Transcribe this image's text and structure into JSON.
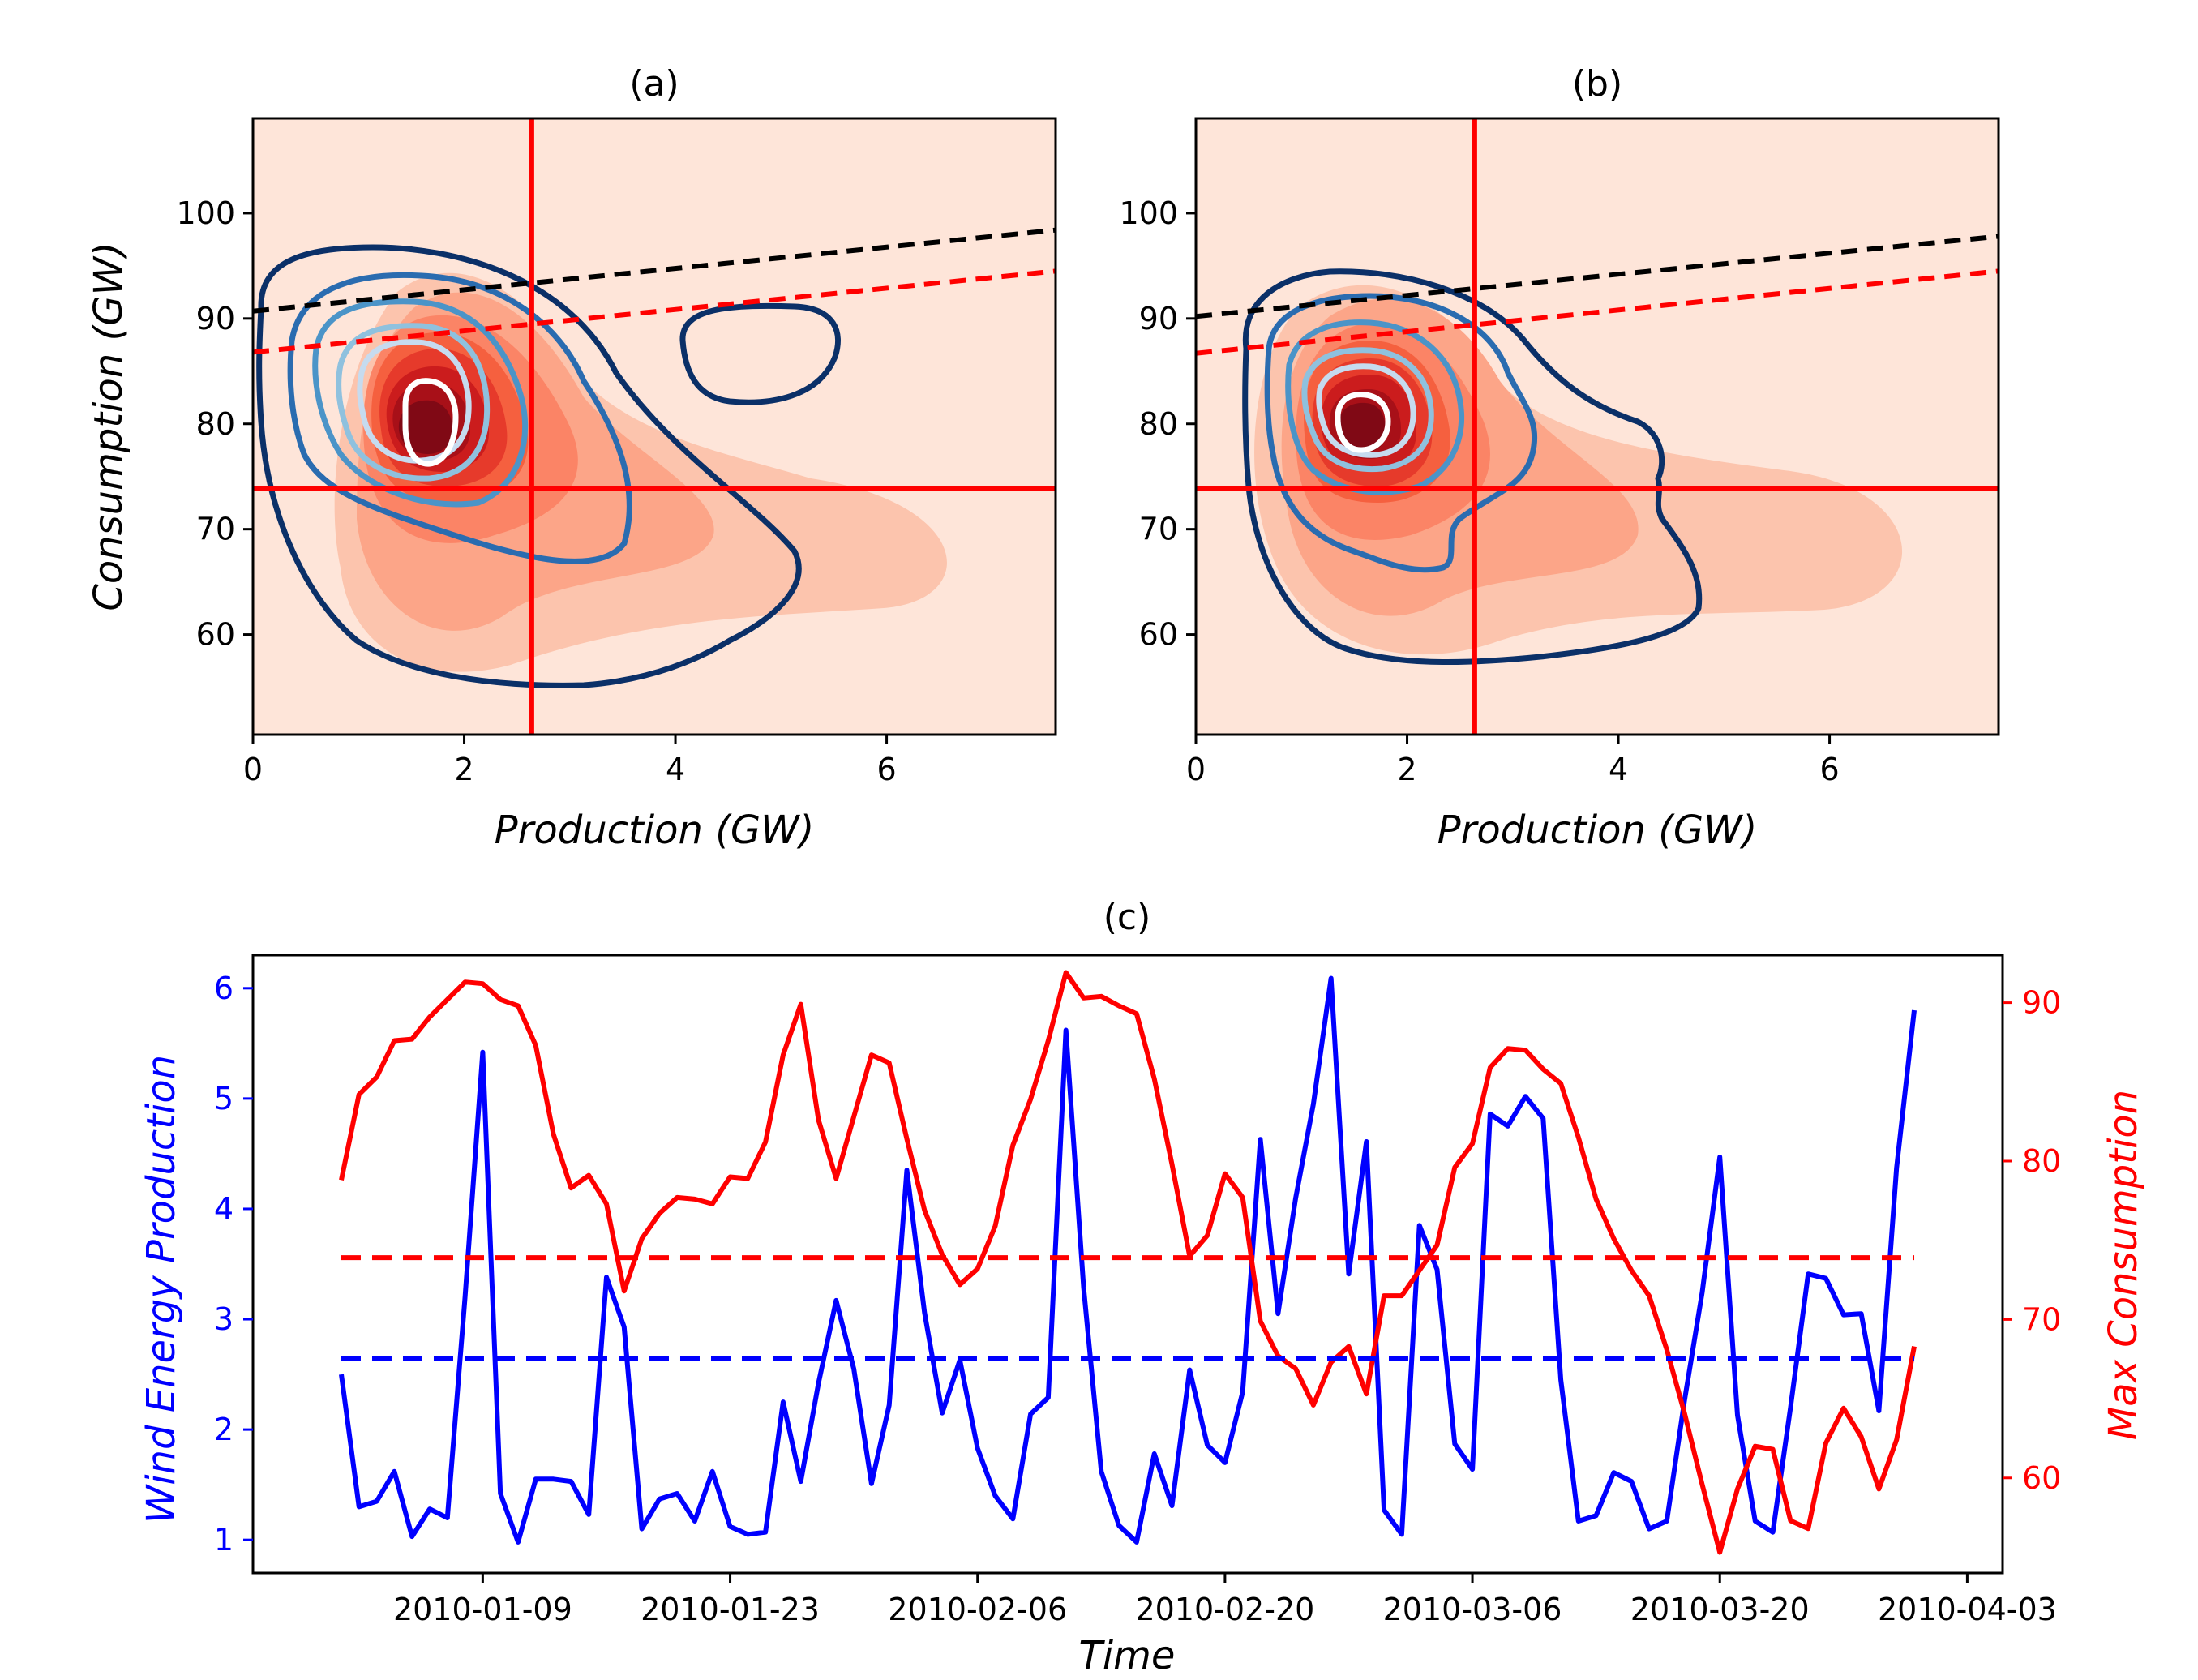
{
  "chart_data": [
    {
      "type": "contour",
      "title": "(a)",
      "xlabel": "Production (GW)",
      "ylabel": "Consumption (GW)",
      "xlim": [
        0,
        7.6
      ],
      "ylim": [
        50.5,
        109
      ],
      "xticks": [
        "0",
        "2",
        "4",
        "6"
      ],
      "yticks": [
        "60",
        "70",
        "80",
        "90",
        "100"
      ],
      "hline": 73.9,
      "vline": 2.64,
      "line_black_dashed": [
        [
          0,
          90.7
        ],
        [
          7.6,
          98.4
        ]
      ],
      "line_red_dashed": [
        [
          0,
          86.8
        ],
        [
          7.6,
          94.5
        ]
      ],
      "filled_density_center": [
        1.5,
        78.5
      ],
      "filled_colors": [
        "#fee5d9",
        "#fcc4ad",
        "#fca588",
        "#fb8466",
        "#f5603f",
        "#e63a2b",
        "#cb1c1d",
        "#a81018",
        "#800915"
      ],
      "line_colors": [
        "#0b3068",
        "#2a6cb0",
        "#4b94c8",
        "#8fc1de",
        "#c6dbef",
        "#ffffff"
      ],
      "show_grid": false
    },
    {
      "type": "contour",
      "title": "(b)",
      "xlabel": "Production (GW)",
      "ylabel": "",
      "xlim": [
        0,
        7.6
      ],
      "ylim": [
        50.5,
        109
      ],
      "xticks": [
        "0",
        "2",
        "4",
        "6"
      ],
      "yticks": [
        "60",
        "70",
        "80",
        "90",
        "100"
      ],
      "hline": 73.9,
      "vline": 2.64,
      "line_black_dashed": [
        [
          0,
          90.2
        ],
        [
          7.6,
          97.8
        ]
      ],
      "line_red_dashed": [
        [
          0,
          86.7
        ],
        [
          7.6,
          94.5
        ]
      ],
      "filled_density_center": [
        1.45,
        78.5
      ],
      "show_grid": false
    },
    {
      "type": "line",
      "title": "(c)",
      "xlabel": "Time",
      "ylabel_left": "Wind Energy Production",
      "ylabel_right": "Max Consumption",
      "xlim": [
        "2009-12-27",
        "2010-04-05"
      ],
      "ylim_left": [
        0.7,
        6.3
      ],
      "ylim_right": [
        54,
        93
      ],
      "xticks": [
        "2010-01-09",
        "2010-01-23",
        "2010-02-06",
        "2010-02-20",
        "2010-03-06",
        "2010-03-20",
        "2010-04-03"
      ],
      "yticks_left": [
        "1",
        "2",
        "3",
        "4",
        "5",
        "6"
      ],
      "yticks_right": [
        "60",
        "70",
        "80",
        "90"
      ],
      "start_date": "2010-01-01",
      "colors": {
        "left": "#0000ff",
        "right": "#ff0000"
      },
      "series": [
        {
          "name": "Wind Energy Production",
          "axis": "left",
          "color": "#0000ff",
          "values": [
            2.5,
            1.3,
            1.35,
            1.62,
            1.03,
            1.28,
            1.2,
            3.2,
            5.42,
            1.42,
            0.98,
            1.55,
            1.55,
            1.53,
            1.23,
            3.38,
            2.93,
            1.1,
            1.37,
            1.42,
            1.17,
            1.62,
            1.12,
            1.05,
            1.07,
            2.25,
            1.53,
            2.42,
            3.17,
            2.55,
            1.51,
            2.22,
            4.35,
            3.06,
            2.15,
            2.63,
            1.83,
            1.4,
            1.19,
            2.14,
            2.29,
            5.62,
            3.29,
            1.62,
            1.13,
            0.98,
            1.78,
            1.31,
            2.54,
            1.86,
            1.7,
            2.34,
            4.63,
            3.05,
            4.1,
            4.95,
            6.09,
            3.41,
            4.61,
            1.27,
            1.05,
            3.85,
            3.45,
            1.87,
            1.64,
            4.86,
            4.75,
            5.02,
            4.82,
            2.45,
            1.17,
            1.22,
            1.61,
            1.53,
            1.1,
            1.17,
            2.26,
            3.24,
            4.47,
            2.13,
            1.17,
            1.07,
            2.2,
            3.41,
            3.37,
            3.04,
            3.05,
            2.17,
            4.37,
            5.8
          ]
        },
        {
          "name": "Max Consumption",
          "axis": "right",
          "color": "#ff0000",
          "values": [
            78.8,
            84.2,
            85.3,
            87.6,
            87.7,
            89.1,
            90.2,
            91.3,
            91.2,
            90.2,
            89.8,
            87.3,
            81.7,
            78.3,
            79.1,
            77.3,
            71.8,
            75.1,
            76.7,
            77.7,
            77.6,
            77.3,
            79.0,
            78.9,
            81.2,
            86.7,
            89.9,
            82.6,
            78.9,
            82.8,
            86.7,
            86.2,
            81.4,
            76.9,
            74.1,
            72.2,
            73.2,
            75.9,
            81.0,
            83.9,
            87.6,
            91.9,
            90.3,
            90.4,
            89.8,
            89.3,
            85.2,
            79.8,
            74.0,
            75.3,
            79.2,
            77.7,
            69.9,
            67.7,
            66.9,
            64.6,
            67.3,
            68.3,
            65.3,
            71.5,
            71.5,
            73.1,
            74.7,
            79.6,
            81.1,
            85.9,
            87.1,
            87.0,
            85.8,
            84.9,
            81.5,
            77.6,
            75.1,
            73.1,
            71.5,
            68.1,
            64.1,
            59.6,
            55.3,
            59.3,
            62.0,
            61.8,
            57.3,
            56.8,
            62.2,
            64.4,
            62.6,
            59.3,
            62.4,
            68.3
          ]
        },
        {
          "name": "",
          "axis": "left",
          "color": "#0000ff",
          "dashed": true,
          "values": [
            2.64
          ]
        },
        {
          "name": "",
          "axis": "right",
          "color": "#ff0000",
          "dashed": true,
          "values": [
            73.9
          ]
        }
      ]
    }
  ]
}
